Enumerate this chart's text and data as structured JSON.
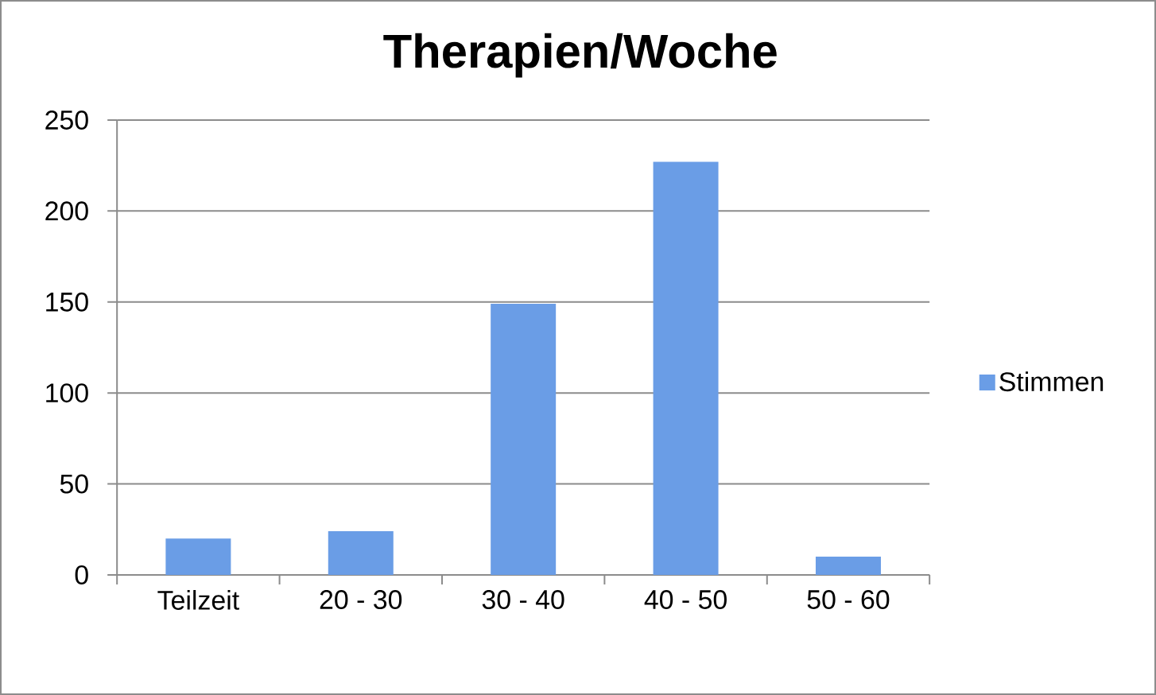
{
  "chart_data": {
    "type": "bar",
    "title": "Therapien/Woche",
    "categories": [
      "Teilzeit",
      "20 - 30",
      "30 - 40",
      "40 - 50",
      "50 - 60"
    ],
    "series": [
      {
        "name": "Stimmen",
        "color": "#6a9de6",
        "values": [
          20,
          24,
          149,
          227,
          10
        ]
      }
    ],
    "ylim": [
      0,
      250
    ],
    "yticks": [
      0,
      50,
      100,
      150,
      200,
      250
    ],
    "grid": "y",
    "legend": "right"
  }
}
